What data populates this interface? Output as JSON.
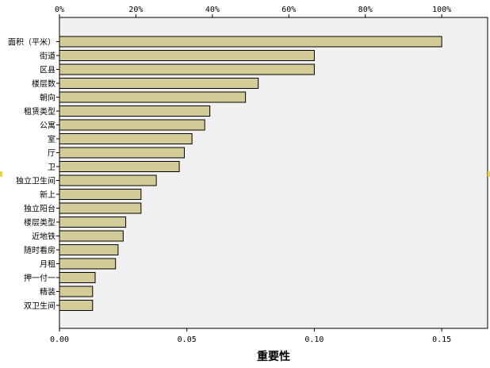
{
  "chart_data": {
    "type": "bar",
    "orientation": "horizontal",
    "categories": [
      "面积（平米）",
      "街道",
      "区县",
      "楼层数",
      "朝向",
      "租赁类型",
      "公寓",
      "室",
      "厅",
      "卫",
      "独立卫生间",
      "新上",
      "独立阳台",
      "楼层类型",
      "近地铁",
      "随时看房",
      "月租",
      "押一付一",
      "精装",
      "双卫生间"
    ],
    "values": [
      0.15,
      0.1,
      0.1,
      0.078,
      0.073,
      0.059,
      0.057,
      0.052,
      0.049,
      0.047,
      0.038,
      0.032,
      0.032,
      0.026,
      0.025,
      0.023,
      0.022,
      0.014,
      0.013,
      0.013
    ],
    "xlabel": "重要性",
    "ylabel": "",
    "xlim": [
      0,
      0.168
    ],
    "bottom_ticks": [
      "0.00",
      "0.05",
      "0.10",
      "0.15"
    ],
    "bottom_tick_values": [
      0,
      0.05,
      0.1,
      0.15
    ],
    "top_ticks": [
      "0%",
      "20%",
      "40%",
      "60%",
      "80%",
      "100%"
    ],
    "top_tick_values": [
      0,
      20,
      40,
      60,
      80,
      100
    ],
    "top_axis_max_value": 0.15,
    "grid": false,
    "legend": "none",
    "colors": {
      "bar_fill": "#D4CC98",
      "bar_stroke": "#000000",
      "plot_background": "#F0F0F0",
      "marker": "#F2D23C"
    }
  }
}
